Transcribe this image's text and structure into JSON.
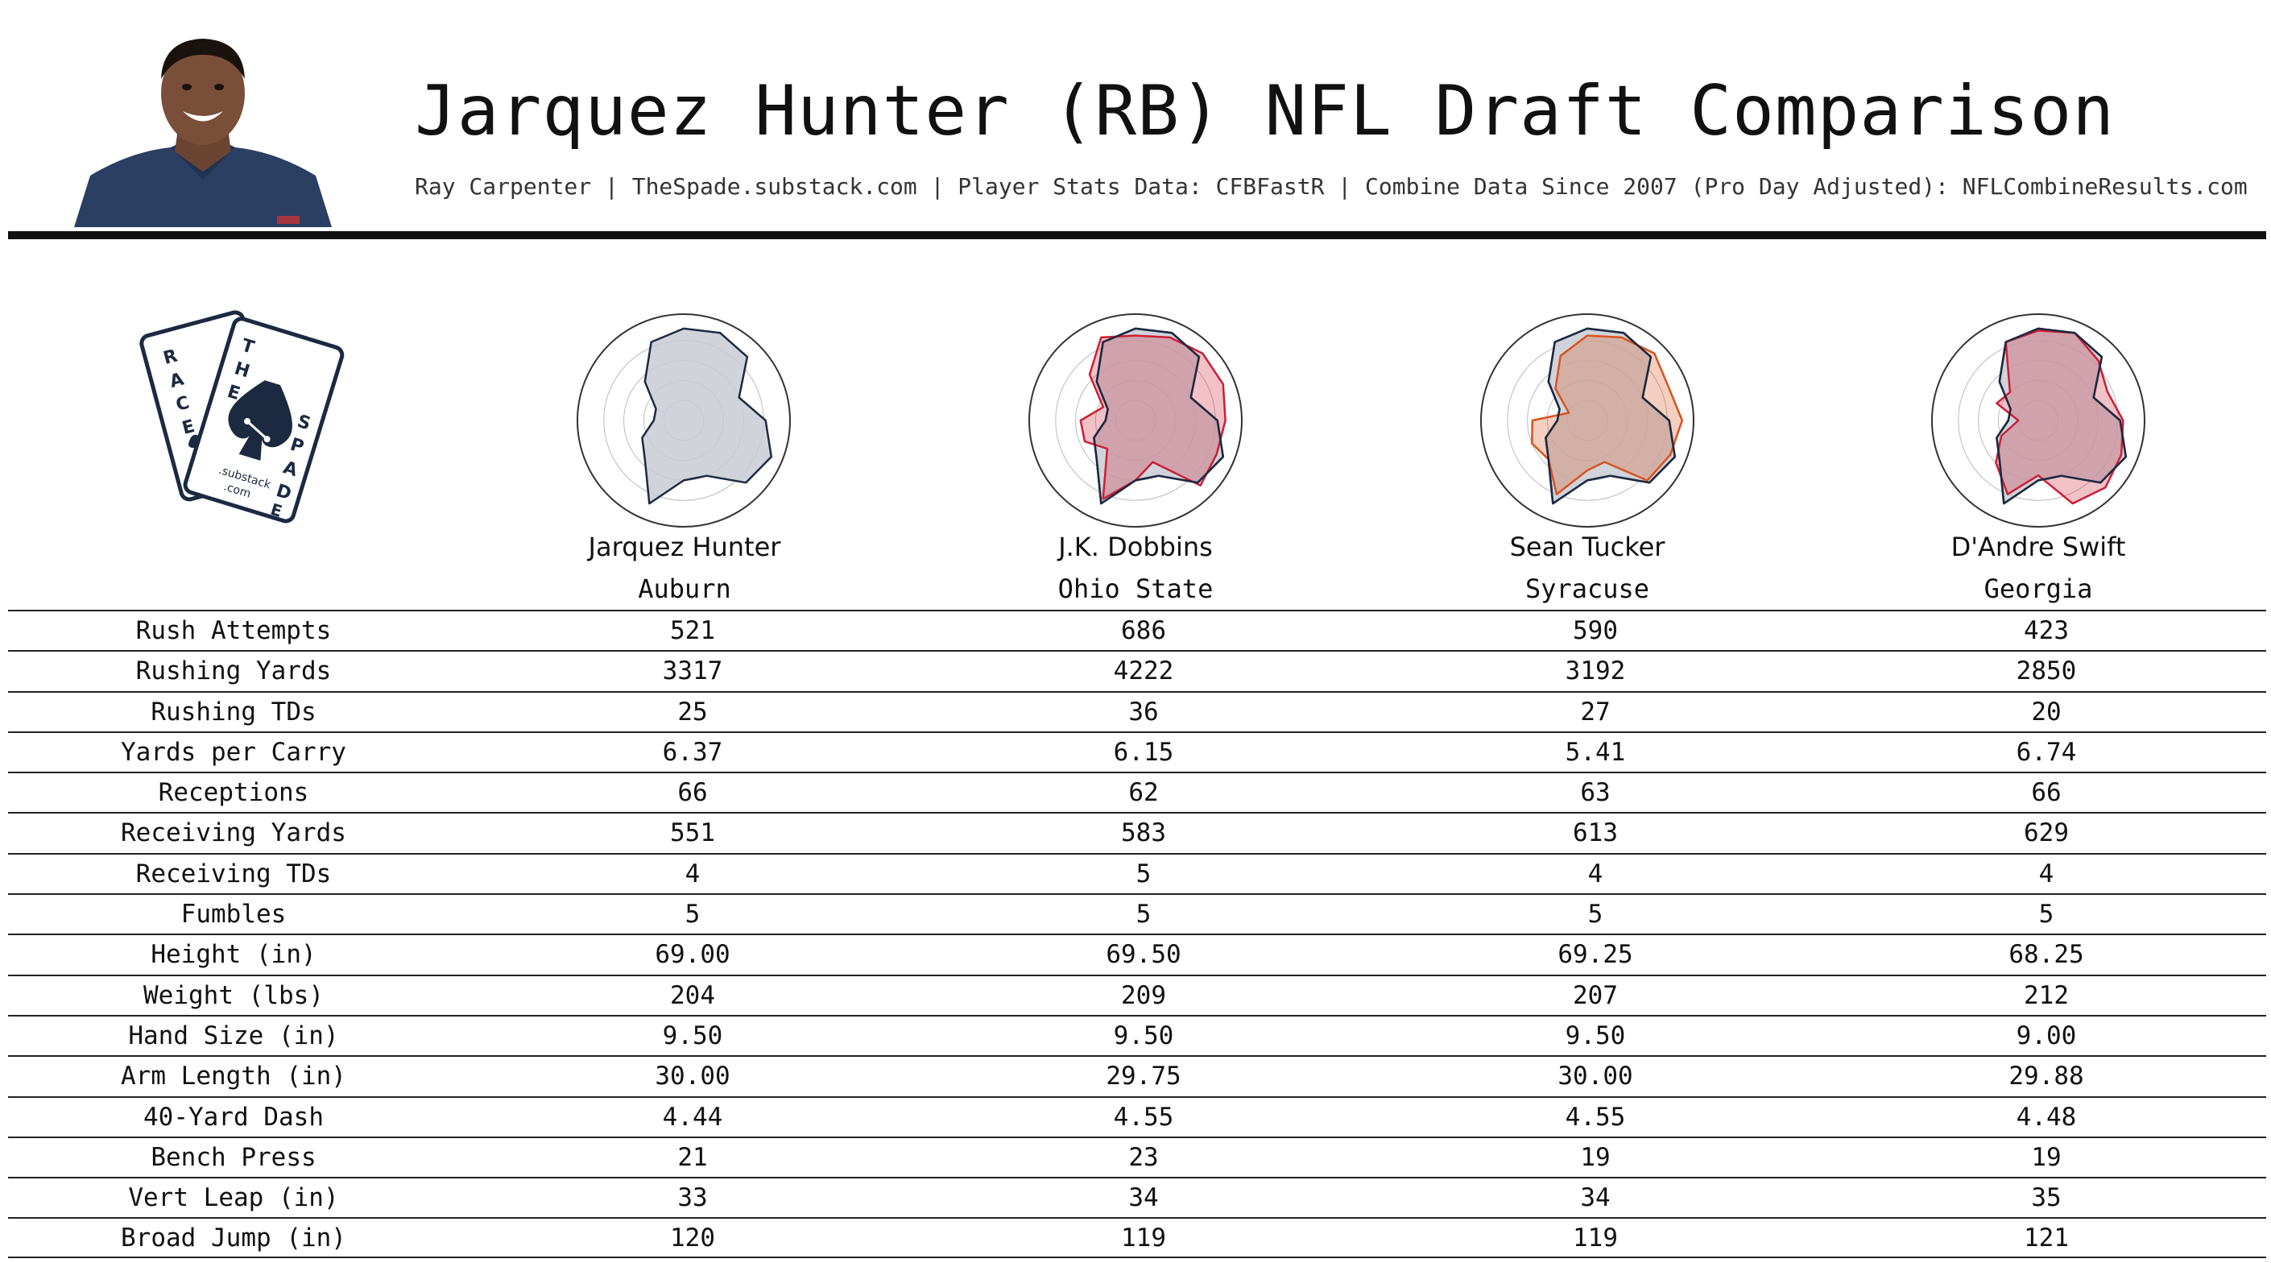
{
  "header": {
    "title": "Jarquez Hunter (RB) NFL Draft Comparison",
    "subtitle": "Ray Carpenter | TheSpade.substack.com | Player Stats Data: CFBFastR | Combine Data Since 2007 (Pro Day Adjusted): NFLCombineResults.com"
  },
  "logo": {
    "letters_back": "RACE",
    "letters_top": "THE",
    "letters_side": "SPADE",
    "text_substack": ".substack",
    "text_com": ".com"
  },
  "colors": {
    "navy": "#1b2a41",
    "crimson": "#cc1f36",
    "orange": "#d9531e",
    "radar_fill": "#c8cdd3"
  },
  "players": [
    {
      "name": "Jarquez Hunter",
      "school": "Auburn"
    },
    {
      "name": "J.K. Dobbins",
      "school": "Ohio State"
    },
    {
      "name": "Sean Tucker",
      "school": "Syracuse"
    },
    {
      "name": "D'Andre Swift",
      "school": "Georgia"
    }
  ],
  "table": {
    "rows": [
      {
        "label": "Rush Attempts",
        "values": [
          "521",
          "686",
          "590",
          "423"
        ]
      },
      {
        "label": "Rushing Yards",
        "values": [
          "3317",
          "4222",
          "3192",
          "2850"
        ]
      },
      {
        "label": "Rushing TDs",
        "values": [
          "25",
          "36",
          "27",
          "20"
        ]
      },
      {
        "label": "Yards per Carry",
        "values": [
          "6.37",
          "6.15",
          "5.41",
          "6.74"
        ]
      },
      {
        "label": "Receptions",
        "values": [
          "66",
          "62",
          "63",
          "66"
        ]
      },
      {
        "label": "Receiving Yards",
        "values": [
          "551",
          "583",
          "613",
          "629"
        ]
      },
      {
        "label": "Receiving TDs",
        "values": [
          "4",
          "5",
          "4",
          "4"
        ]
      },
      {
        "label": "Fumbles",
        "values": [
          "5",
          "5",
          "5",
          "5"
        ]
      },
      {
        "label": "Height (in)",
        "values": [
          "69.00",
          "69.50",
          "69.25",
          "68.25"
        ]
      },
      {
        "label": "Weight (lbs)",
        "values": [
          "204",
          "209",
          "207",
          "212"
        ]
      },
      {
        "label": "Hand Size (in)",
        "values": [
          "9.50",
          "9.50",
          "9.50",
          "9.00"
        ]
      },
      {
        "label": "Arm Length (in)",
        "values": [
          "30.00",
          "29.75",
          "30.00",
          "29.88"
        ]
      },
      {
        "label": "40-Yard Dash",
        "values": [
          "4.44",
          "4.55",
          "4.55",
          "4.48"
        ]
      },
      {
        "label": "Bench Press",
        "values": [
          "21",
          "23",
          "19",
          "19"
        ]
      },
      {
        "label": "Vert Leap (in)",
        "values": [
          "33",
          "34",
          "34",
          "35"
        ]
      },
      {
        "label": "Broad Jump (in)",
        "values": [
          "120",
          "119",
          "119",
          "121"
        ]
      }
    ]
  },
  "chart_data": {
    "type": "radar",
    "axes_count": 16,
    "range": [
      0,
      1
    ],
    "grid": true,
    "reference_series": "Jarquez Hunter",
    "reference_values": [
      0.92,
      0.95,
      0.9,
      0.6,
      0.82,
      0.95,
      0.88,
      0.6,
      0.6,
      0.9,
      0.55,
      0.45,
      0.3,
      0.3,
      0.55,
      0.85
    ],
    "panels": [
      {
        "player": "Jarquez Hunter",
        "comparison_values": null,
        "comparison_color": null
      },
      {
        "player": "J.K. Dobbins",
        "comparison_values": [
          0.85,
          0.9,
          0.95,
          0.95,
          0.9,
          0.88,
          0.92,
          0.45,
          0.6,
          0.85,
          0.4,
          0.55,
          0.55,
          0.35,
          0.65,
          0.9
        ],
        "comparison_color": "#cc1f36"
      },
      {
        "player": "Sean Tucker",
        "comparison_values": [
          0.85,
          0.9,
          0.95,
          0.88,
          0.95,
          0.9,
          0.85,
          0.45,
          0.5,
          0.8,
          0.55,
          0.6,
          0.55,
          0.2,
          0.45,
          0.7
        ],
        "comparison_color": "#d9531e"
      },
      {
        "player": "D'Andre Swift",
        "comparison_values": [
          0.9,
          0.95,
          0.85,
          0.75,
          0.85,
          0.9,
          0.95,
          0.9,
          0.55,
          0.8,
          0.6,
          0.4,
          0.2,
          0.45,
          0.4,
          0.85
        ],
        "comparison_color": "#cc1f36"
      }
    ]
  }
}
